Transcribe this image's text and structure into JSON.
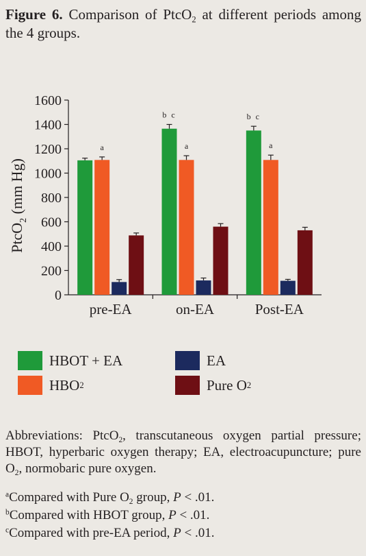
{
  "caption": {
    "figure_label": "Figure 6.",
    "text_before_sub": "Comparison of PtcO",
    "text_sub": "2",
    "text_after_sub": " at different periods among the 4 groups."
  },
  "chart_data": {
    "type": "bar",
    "categories": [
      "pre-EA",
      "on-EA",
      "Post-EA"
    ],
    "series": [
      {
        "name": "HBOT+EA",
        "color": "#1f9a3a",
        "values": [
          1105,
          1365,
          1350
        ],
        "errors": [
          18,
          35,
          35
        ],
        "labels": [
          "",
          "b c",
          "b c"
        ]
      },
      {
        "name": "HBO2",
        "color": "#f05a24",
        "values": [
          1108,
          1108,
          1108
        ],
        "errors": [
          25,
          35,
          40
        ],
        "labels": [
          "a",
          "a",
          "a"
        ]
      },
      {
        "name": "EA",
        "color": "#1c2a5e",
        "values": [
          105,
          118,
          115
        ],
        "errors": [
          20,
          20,
          12
        ],
        "labels": [
          "",
          "",
          ""
        ]
      },
      {
        "name": "Pure O2",
        "color": "#6e0f14",
        "values": [
          488,
          560,
          530
        ],
        "errors": [
          20,
          25,
          25
        ],
        "labels": [
          "",
          "",
          ""
        ]
      }
    ],
    "ylabel_main": "PtcO",
    "ylabel_sub": "2",
    "ylabel_unit": " (mm Hg)",
    "xlabel": "",
    "ylim": [
      0,
      1600
    ],
    "yticks": [
      0,
      200,
      400,
      600,
      800,
      1000,
      1200,
      1400,
      1600
    ],
    "grid": false,
    "legend_placement": "bottom"
  },
  "legend": [
    {
      "main": "HBOT + EA",
      "sub": "",
      "color": "#1f9a3a"
    },
    {
      "main": "HBO",
      "sub": "2",
      "color": "#f05a24"
    },
    {
      "main": "EA",
      "sub": "",
      "color": "#1c2a5e"
    },
    {
      "main": "Pure O",
      "sub": "2",
      "color": "#6e0f14"
    }
  ],
  "notes": {
    "abbreviations": [
      {
        "main": "Abbreviations: PtcO",
        "sub": "2"
      },
      {
        "main": ", transcutaneous oxygen partial pressure; HBOT, hyperbaric oxygen therapy; EA, electroacupuncture; pure O",
        "sub": "2"
      },
      {
        "main": ", normobaric pure oxygen.",
        "sub": ""
      }
    ],
    "footnotes": [
      {
        "mark": "a",
        "before_sub": "Compared with Pure O",
        "sub": "2",
        "after_sub": " group, ",
        "p": "P",
        "tail": " < .01."
      },
      {
        "mark": "b",
        "before_sub": "Compared with HBOT group, ",
        "sub": "",
        "after_sub": "",
        "p": "P",
        "tail": " < .01."
      },
      {
        "mark": "c",
        "before_sub": "Compared with pre-EA period, ",
        "sub": "",
        "after_sub": "",
        "p": "P",
        "tail": " < .01."
      }
    ]
  }
}
